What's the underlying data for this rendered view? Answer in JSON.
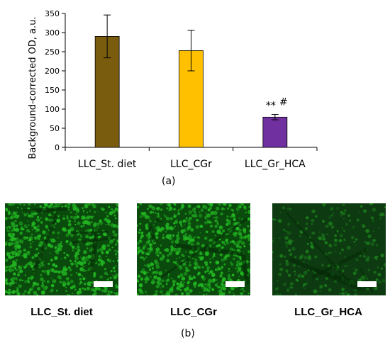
{
  "chart_data": {
    "type": "bar",
    "categories": [
      "LLC_St. diet",
      "LLC_CGr",
      "LLC_Gr_HCA"
    ],
    "values": [
      290,
      253,
      79
    ],
    "errors": [
      56,
      53,
      7
    ],
    "bar_colors": [
      "#7a5c0f",
      "#ffc000",
      "#7030a0"
    ],
    "ylabel": "Background-corrected OD, a.u.",
    "ylim": [
      0,
      350
    ],
    "yticks": [
      0,
      50,
      100,
      150,
      200,
      250,
      300,
      350
    ],
    "annotations": [
      "**",
      "#"
    ],
    "panel_label": "(a)"
  },
  "micrographs": {
    "panel_label": "(b)",
    "items": [
      {
        "label": "LLC_St. diet",
        "stain_color": "#22b522",
        "density": "high"
      },
      {
        "label": "LLC_CGr",
        "stain_color": "#22b522",
        "density": "high"
      },
      {
        "label": "LLC_Gr_HCA",
        "stain_color": "#1f8a1f",
        "density": "low"
      }
    ]
  }
}
